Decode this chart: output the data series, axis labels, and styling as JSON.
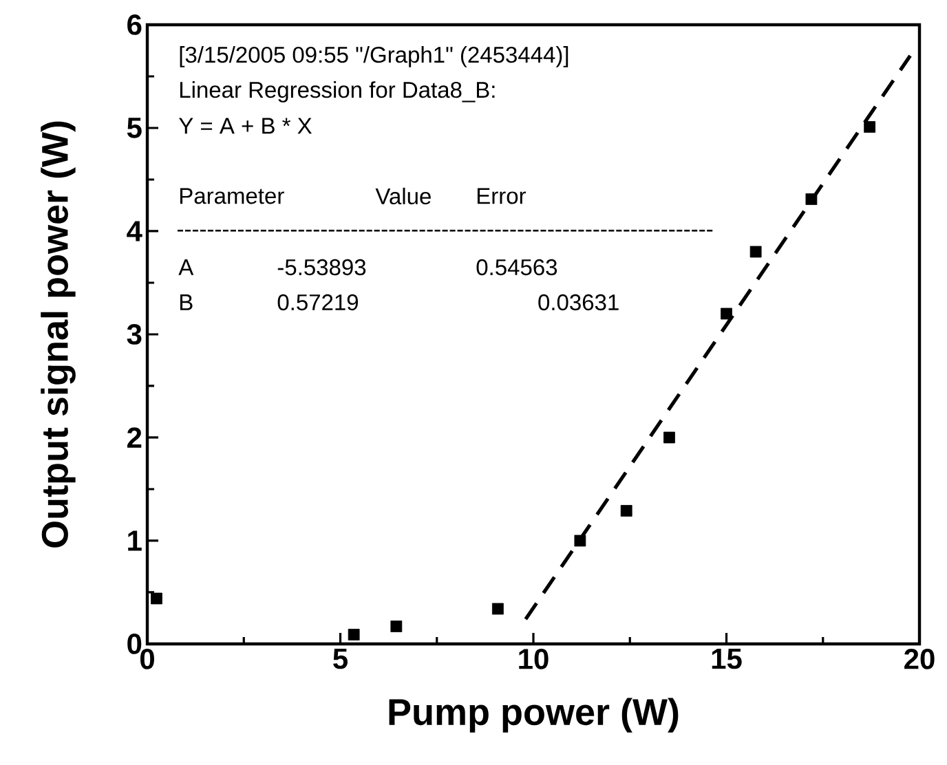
{
  "chart_data": {
    "type": "scatter",
    "xlabel": "Pump power (W)",
    "ylabel": "Output signal power (W)",
    "xlim": [
      0,
      20
    ],
    "ylim": [
      0,
      6
    ],
    "xticks": [
      0,
      5,
      10,
      15,
      20
    ],
    "yticks": [
      0,
      1,
      2,
      3,
      4,
      5,
      6
    ],
    "marker": "square",
    "series": [
      {
        "color": "#000000",
        "x": [
          0.24,
          5.35,
          6.45,
          9.08,
          11.21,
          12.41,
          13.52,
          15.0,
          15.76,
          17.2,
          18.71
        ],
        "values": [
          0.44,
          0.09,
          0.17,
          0.34,
          1.0,
          1.29,
          2.0,
          3.2,
          3.8,
          4.31,
          5.01
        ]
      },
      {
        "type": "line",
        "line_style": "dashed",
        "marker": "none",
        "color": "#000000",
        "x": [
          9.8,
          19.76
        ],
        "values": [
          0.24,
          5.7
        ]
      }
    ],
    "annotations": [
      "[3/15/2005 09:55 \"/Graph1\" (2453444)]",
      "Linear Regression for Data8_B:",
      "Y = A + B * X",
      "Parameter",
      "Value",
      "Error",
      "-----------------------------------------------------------------------",
      "A",
      "-5.53893",
      "0.54563",
      "B",
      "0.57219",
      "0.03631"
    ]
  }
}
